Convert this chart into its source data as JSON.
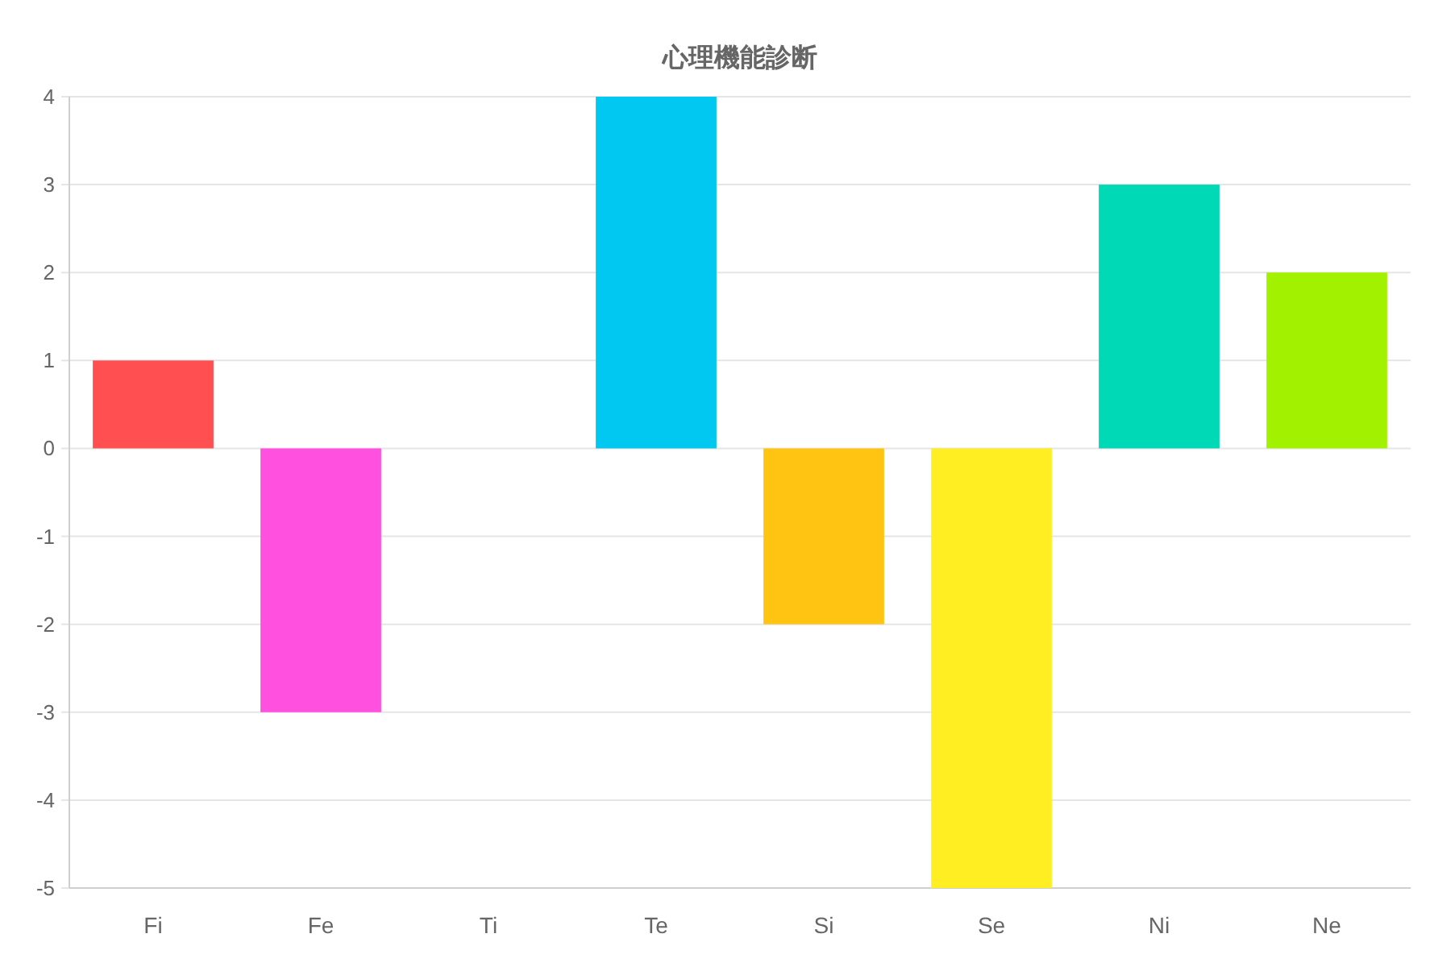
{
  "chart_data": {
    "type": "bar",
    "title": "心理機能診断",
    "categories": [
      "Fi",
      "Fe",
      "Ti",
      "Te",
      "Si",
      "Se",
      "Ni",
      "Ne"
    ],
    "values": [
      1,
      -3,
      0,
      4,
      -2,
      -5,
      3,
      2
    ],
    "colors": [
      "#ff4f50",
      "#ff50e0",
      "#b0b0b0",
      "#00c8f0",
      "#ffc412",
      "#ffee22",
      "#00d9b5",
      "#a2f200"
    ],
    "ylim": [
      -5,
      4
    ],
    "yticks": [
      -5,
      -4,
      -3,
      -2,
      -1,
      0,
      1,
      2,
      3,
      4
    ],
    "grid": "y"
  }
}
